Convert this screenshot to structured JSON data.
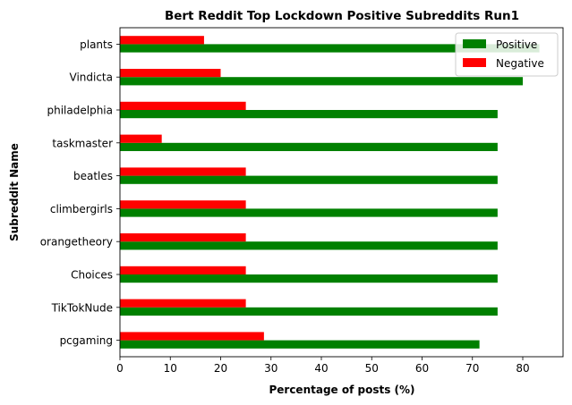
{
  "chart_data": {
    "type": "bar",
    "orientation": "horizontal",
    "title": "Bert Reddit Top Lockdown Positive Subreddits Run1",
    "xlabel": "Percentage of posts (%)",
    "ylabel": "Subreddit Name",
    "xlim": [
      0,
      88
    ],
    "xticks": [
      0,
      10,
      20,
      30,
      40,
      50,
      60,
      70,
      80
    ],
    "categories": [
      "pcgaming",
      "TikTokNude",
      "Choices",
      "orangetheory",
      "climbergirls",
      "beatles",
      "taskmaster",
      "philadelphia",
      "Vindicta",
      "plants"
    ],
    "series": [
      {
        "name": "Positive",
        "color": "#008000",
        "values": [
          71.4,
          75.0,
          75.0,
          75.0,
          75.0,
          75.0,
          75.0,
          75.0,
          80.0,
          83.3
        ]
      },
      {
        "name": "Negative",
        "color": "#ff0000",
        "values": [
          28.6,
          25.0,
          25.0,
          25.0,
          25.0,
          25.0,
          8.3,
          25.0,
          20.0,
          16.7
        ]
      }
    ],
    "legend_position": "top-right",
    "grid": false
  }
}
